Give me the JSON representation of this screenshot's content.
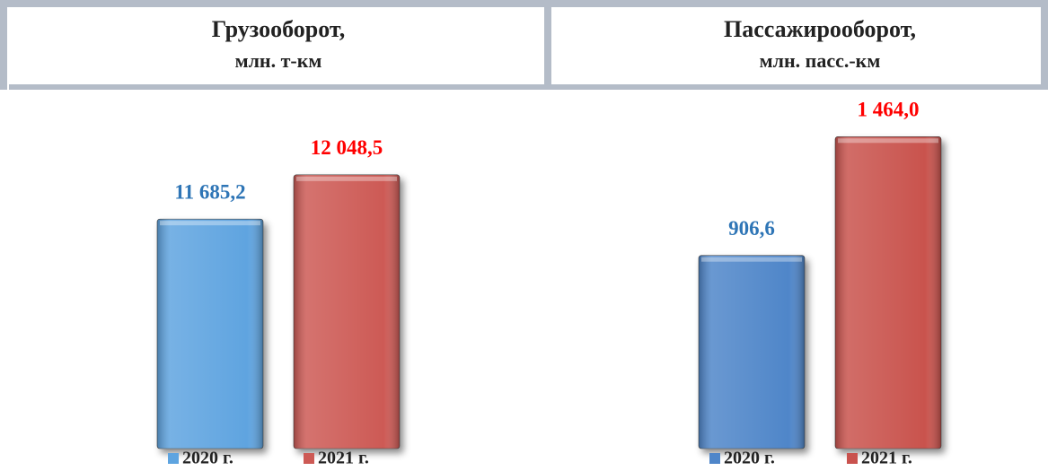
{
  "chart_data": [
    {
      "type": "bar",
      "title": [
        "Грузооборот,",
        "млн. т-км"
      ],
      "ylim": [
        9800,
        12600
      ],
      "series": [
        {
          "name": "2020 г.",
          "color": "#5ea4e0",
          "label_color": "#2e75b6",
          "values": [
            11685.2
          ],
          "value_labels": [
            "11 685,2"
          ]
        },
        {
          "name": "2021 г.",
          "color": "#cd5a55",
          "label_color": "#ff0000",
          "values": [
            12048.5
          ],
          "value_labels": [
            "12 048,5"
          ]
        }
      ]
    },
    {
      "type": "bar",
      "title": [
        "Пассажирооборот,",
        "млн. пасс.-км"
      ],
      "ylim": [
        0,
        1600
      ],
      "series": [
        {
          "name": "2020 г.",
          "color": "#4f86c9",
          "label_color": "#2e75b6",
          "values": [
            906.6
          ],
          "value_labels": [
            "906,6"
          ]
        },
        {
          "name": "2021 г.",
          "color": "#c9524e",
          "label_color": "#ff0000",
          "values": [
            1464.0
          ],
          "value_labels": [
            "1 464,0"
          ]
        }
      ]
    }
  ]
}
